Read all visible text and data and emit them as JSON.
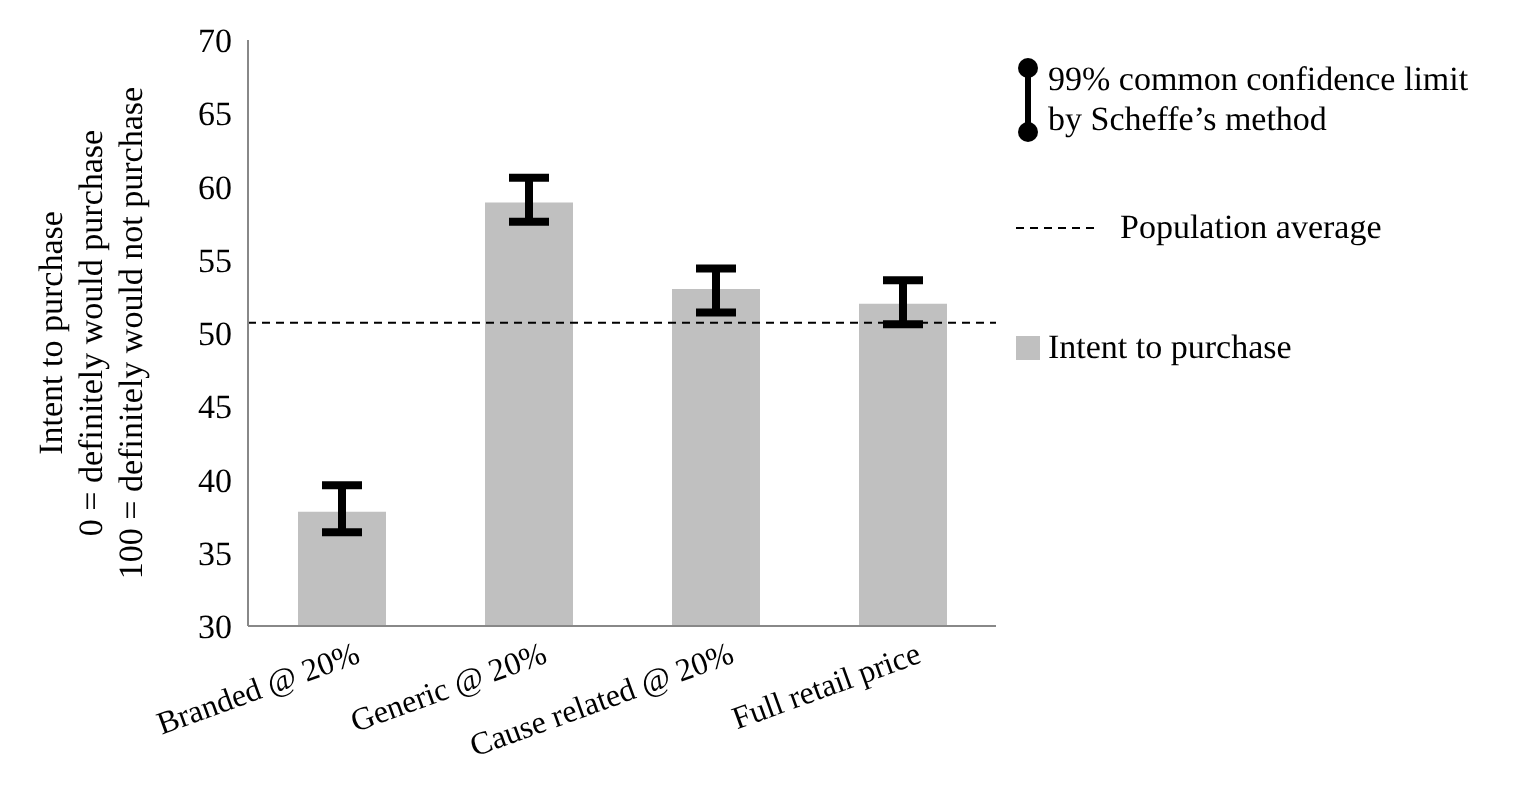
{
  "chart_data": {
    "type": "bar",
    "ylabel": "Intent to purchase\n0 = definitely would purchase\n100 = definitely would not purchase",
    "categories": [
      "Branded @ 20%",
      "Generic @ 20%",
      "Cause related @ 20%",
      "Full retail price"
    ],
    "series": [
      {
        "name": "Intent to purchase",
        "color": "#c0c0c0",
        "values": [
          37.8,
          58.9,
          53,
          52
        ],
        "errors": [
          [
            36.4,
            39.6
          ],
          [
            57.6,
            60.6
          ],
          [
            51.4,
            54.4
          ],
          [
            50.6,
            53.6
          ]
        ]
      }
    ],
    "ylim": [
      30,
      70
    ],
    "yticks": [
      30,
      35,
      40,
      45,
      50,
      55,
      60,
      65,
      70
    ],
    "ref_lines": [
      {
        "axis": "y",
        "value": 50.7,
        "label": "Population average",
        "color": "#000000",
        "line_style": "dashed"
      }
    ],
    "annotations": [
      "99% common confidence limit by Scheffe’s method"
    ],
    "legend": "right",
    "grid": false
  }
}
